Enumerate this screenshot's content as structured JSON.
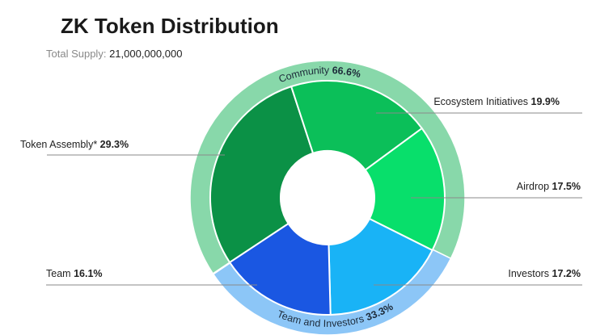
{
  "chart_data": {
    "type": "sunburst",
    "title": "ZK Token Distribution",
    "subtitle_label": "Total Supply:",
    "subtitle_value": "21,000,000,000",
    "inner": {
      "categories": [
        "Token Assembly*",
        "Ecosystem Initiatives",
        "Airdrop",
        "Investors",
        "Team"
      ],
      "values": [
        29.3,
        19.9,
        17.5,
        17.2,
        16.1
      ],
      "value_labels": [
        "29.3%",
        "19.9%",
        "17.5%",
        "17.2%",
        "16.1%"
      ],
      "colors": [
        "#0b9146",
        "#0bbf59",
        "#08df6b",
        "#19b3f6",
        "#1a57e2"
      ]
    },
    "outer": {
      "categories": [
        "Community",
        "Team and Investors"
      ],
      "values": [
        66.6,
        33.3
      ],
      "value_labels": [
        "66.6%",
        "33.3%"
      ],
      "colors": [
        "#88d8aa",
        "#8cc6f7"
      ]
    }
  }
}
